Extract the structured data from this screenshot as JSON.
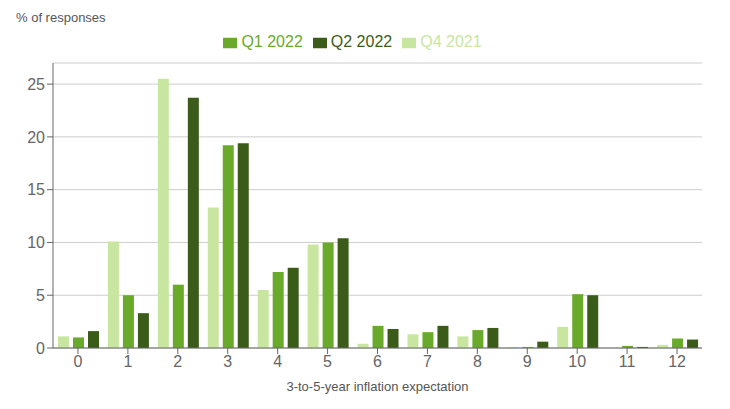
{
  "chart_data": {
    "type": "bar",
    "xlabel": "3-to-5-year inflation expectation",
    "ylabel": "% of responses",
    "categories": [
      0,
      1,
      2,
      3,
      4,
      5,
      6,
      7,
      8,
      9,
      10,
      11,
      12
    ],
    "series": [
      {
        "name": "Q4 2021",
        "color": "#c8e6a0",
        "values": [
          1.1,
          10.1,
          25.5,
          13.3,
          5.5,
          9.8,
          0.4,
          1.3,
          1.1,
          0.1,
          2.0,
          0.0,
          0.3
        ]
      },
      {
        "name": "Q1 2022",
        "color": "#6aaa2a",
        "values": [
          1.0,
          5.0,
          6.0,
          19.2,
          7.2,
          10.0,
          2.1,
          1.5,
          1.7,
          0.1,
          5.1,
          0.2,
          0.9
        ]
      },
      {
        "name": "Q2 2022",
        "color": "#3a5c18",
        "values": [
          1.6,
          3.3,
          23.7,
          19.4,
          7.6,
          10.4,
          1.8,
          2.1,
          1.9,
          0.6,
          5.0,
          0.1,
          0.8
        ]
      }
    ],
    "ylim": [
      0,
      27
    ],
    "yticks": [
      0,
      5,
      10,
      15,
      20,
      25
    ],
    "grid": true,
    "legend": "top"
  }
}
